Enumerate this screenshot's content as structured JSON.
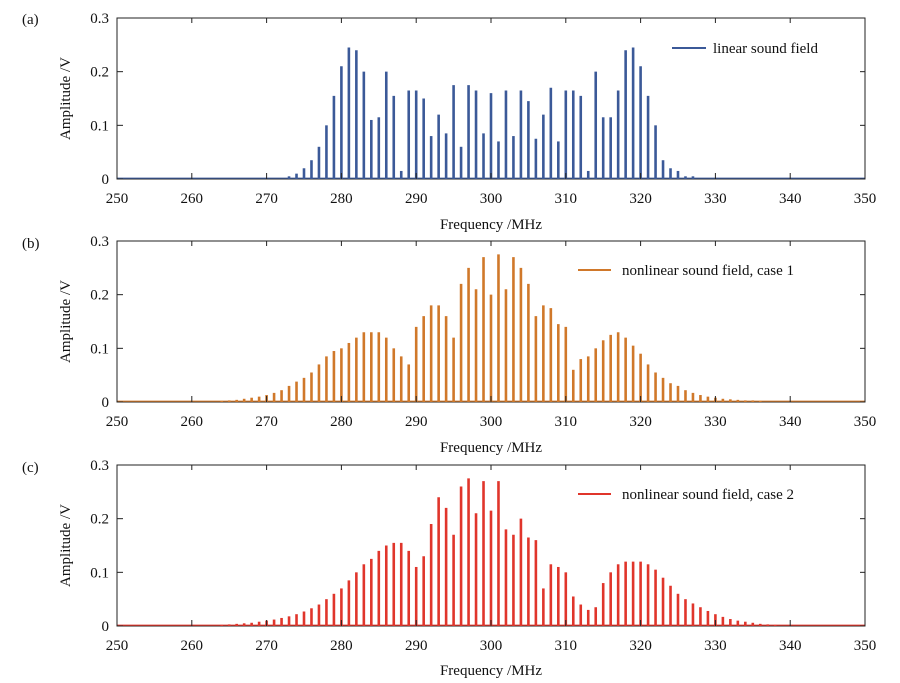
{
  "figure": {
    "panels": [
      {
        "label": "(a)",
        "legend": "linear sound field",
        "color": "#3b5998",
        "profile": "linear"
      },
      {
        "label": "(b)",
        "legend": "nonlinear sound field, case 1",
        "color": "#d0782a",
        "profile": "case1"
      },
      {
        "label": "(c)",
        "legend": "nonlinear sound field, case 2",
        "color": "#e0352b",
        "profile": "case2"
      }
    ]
  },
  "chart_data": [
    {
      "type": "line",
      "title": "(a)",
      "xlabel": "Frequency /MHz",
      "ylabel": "Amplitude /V",
      "xlim": [
        250,
        350
      ],
      "ylim": [
        0,
        0.3
      ],
      "xticks": [
        "250",
        "260",
        "270",
        "280",
        "290",
        "300",
        "310",
        "320",
        "330",
        "340",
        "350"
      ],
      "yticks": [
        "0",
        "0.1",
        "0.2",
        "0.3"
      ],
      "series": [
        {
          "name": "linear sound field",
          "x": [
            273,
            274,
            275,
            276,
            277,
            278,
            279,
            280,
            281,
            282,
            283,
            284,
            285,
            286,
            287,
            288,
            289,
            290,
            291,
            292,
            293,
            294,
            295,
            296,
            297,
            298,
            299,
            300,
            301,
            302,
            303,
            304,
            305,
            306,
            307,
            308,
            309,
            310,
            311,
            312,
            313,
            314,
            315,
            316,
            317,
            318,
            319,
            320,
            321,
            322,
            323,
            324,
            325,
            326,
            327
          ],
          "values": [
            0.005,
            0.01,
            0.02,
            0.035,
            0.06,
            0.1,
            0.155,
            0.21,
            0.245,
            0.24,
            0.2,
            0.11,
            0.115,
            0.2,
            0.155,
            0.015,
            0.165,
            0.165,
            0.15,
            0.08,
            0.12,
            0.085,
            0.175,
            0.06,
            0.175,
            0.165,
            0.085,
            0.16,
            0.07,
            0.165,
            0.08,
            0.165,
            0.145,
            0.075,
            0.12,
            0.17,
            0.07,
            0.165,
            0.165,
            0.155,
            0.015,
            0.2,
            0.115,
            0.115,
            0.165,
            0.24,
            0.245,
            0.21,
            0.155,
            0.1,
            0.035,
            0.02,
            0.015,
            0.005,
            0.005
          ]
        }
      ]
    },
    {
      "type": "line",
      "title": "(b)",
      "xlabel": "Frequency /MHz",
      "ylabel": "Amplitude /V",
      "xlim": [
        250,
        350
      ],
      "ylim": [
        0,
        0.3
      ],
      "xticks": [
        "250",
        "260",
        "270",
        "280",
        "290",
        "300",
        "310",
        "320",
        "330",
        "340",
        "350"
      ],
      "yticks": [
        "0",
        "0.1",
        "0.2",
        "0.3"
      ],
      "series": [
        {
          "name": "nonlinear sound field, case 1",
          "x": [
            264,
            265,
            266,
            267,
            268,
            269,
            270,
            271,
            272,
            273,
            274,
            275,
            276,
            277,
            278,
            279,
            280,
            281,
            282,
            283,
            284,
            285,
            286,
            287,
            288,
            289,
            290,
            291,
            292,
            293,
            294,
            295,
            296,
            297,
            298,
            299,
            300,
            301,
            302,
            303,
            304,
            305,
            306,
            307,
            308,
            309,
            310,
            311,
            312,
            313,
            314,
            315,
            316,
            317,
            318,
            319,
            320,
            321,
            322,
            323,
            324,
            325,
            326,
            327,
            328,
            329,
            330,
            331,
            332,
            333,
            334,
            335,
            336
          ],
          "values": [
            0.002,
            0.003,
            0.004,
            0.006,
            0.008,
            0.01,
            0.013,
            0.017,
            0.022,
            0.03,
            0.038,
            0.045,
            0.055,
            0.07,
            0.085,
            0.095,
            0.1,
            0.11,
            0.12,
            0.13,
            0.13,
            0.13,
            0.12,
            0.1,
            0.085,
            0.07,
            0.14,
            0.16,
            0.18,
            0.18,
            0.16,
            0.12,
            0.22,
            0.25,
            0.21,
            0.27,
            0.2,
            0.275,
            0.21,
            0.27,
            0.25,
            0.22,
            0.16,
            0.18,
            0.175,
            0.145,
            0.14,
            0.06,
            0.08,
            0.085,
            0.1,
            0.115,
            0.125,
            0.13,
            0.12,
            0.105,
            0.09,
            0.07,
            0.055,
            0.045,
            0.035,
            0.03,
            0.022,
            0.017,
            0.013,
            0.01,
            0.008,
            0.006,
            0.005,
            0.004,
            0.003,
            0.003,
            0.002
          ]
        }
      ]
    },
    {
      "type": "line",
      "title": "(c)",
      "xlabel": "Frequency /MHz",
      "ylabel": "Amplitude /V",
      "xlim": [
        250,
        350
      ],
      "ylim": [
        0,
        0.3
      ],
      "xticks": [
        "250",
        "260",
        "270",
        "280",
        "290",
        "300",
        "310",
        "320",
        "330",
        "340",
        "350"
      ],
      "yticks": [
        "0",
        "0.1",
        "0.2",
        "0.3"
      ],
      "series": [
        {
          "name": "nonlinear sound field, case 2",
          "x": [
            264,
            265,
            266,
            267,
            268,
            269,
            270,
            271,
            272,
            273,
            274,
            275,
            276,
            277,
            278,
            279,
            280,
            281,
            282,
            283,
            284,
            285,
            286,
            287,
            288,
            289,
            290,
            291,
            292,
            293,
            294,
            295,
            296,
            297,
            298,
            299,
            300,
            301,
            302,
            303,
            304,
            305,
            306,
            307,
            308,
            309,
            310,
            311,
            312,
            313,
            314,
            315,
            316,
            317,
            318,
            319,
            320,
            321,
            322,
            323,
            324,
            325,
            326,
            327,
            328,
            329,
            330,
            331,
            332,
            333,
            334,
            335,
            336,
            337,
            338
          ],
          "values": [
            0.002,
            0.003,
            0.004,
            0.005,
            0.006,
            0.008,
            0.01,
            0.012,
            0.015,
            0.018,
            0.022,
            0.027,
            0.033,
            0.04,
            0.05,
            0.06,
            0.07,
            0.085,
            0.1,
            0.115,
            0.125,
            0.14,
            0.15,
            0.155,
            0.155,
            0.14,
            0.11,
            0.13,
            0.19,
            0.24,
            0.22,
            0.17,
            0.26,
            0.275,
            0.21,
            0.27,
            0.215,
            0.27,
            0.18,
            0.17,
            0.2,
            0.165,
            0.16,
            0.07,
            0.115,
            0.11,
            0.1,
            0.055,
            0.04,
            0.03,
            0.035,
            0.08,
            0.1,
            0.115,
            0.12,
            0.12,
            0.12,
            0.115,
            0.105,
            0.09,
            0.075,
            0.06,
            0.05,
            0.042,
            0.035,
            0.028,
            0.022,
            0.017,
            0.013,
            0.01,
            0.008,
            0.006,
            0.004,
            0.003,
            0.002
          ]
        }
      ]
    }
  ]
}
